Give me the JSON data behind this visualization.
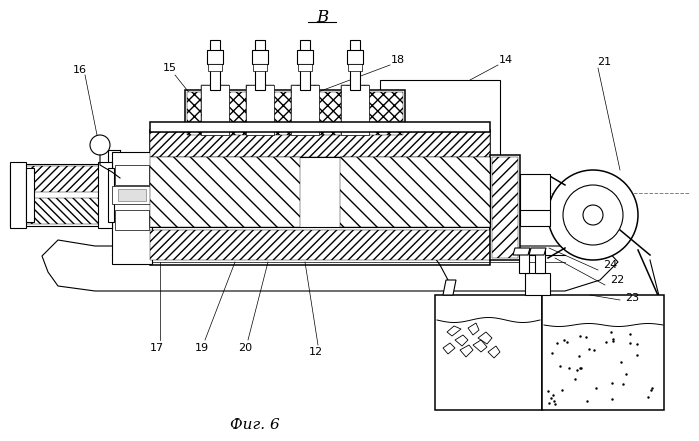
{
  "title_letter": "B",
  "fig_label": "Фиг. 6",
  "bg_color": "#ffffff",
  "line_color": "#000000",
  "figsize": [
    6.99,
    4.41
  ],
  "dpi": 100
}
